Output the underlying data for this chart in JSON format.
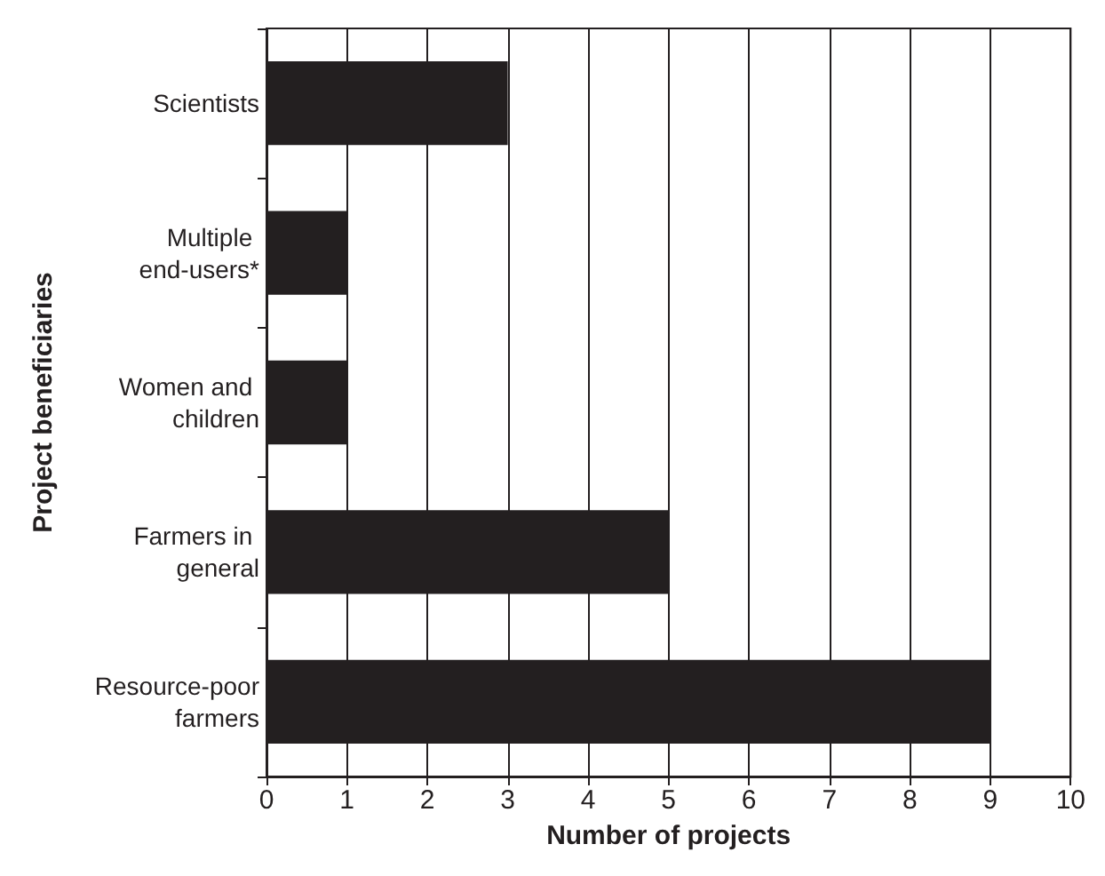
{
  "chart_data": {
    "type": "bar",
    "orientation": "horizontal",
    "xlabel": "Number of projects",
    "ylabel": "Project beneficiaries",
    "categories": [
      "Scientists",
      "Multiple end-users*",
      "Women and children",
      "Farmers in general",
      "Resource-poor farmers"
    ],
    "values": [
      3,
      1,
      1,
      5,
      9
    ],
    "color": "#231f20",
    "xlim": [
      0,
      10
    ],
    "xticks": [
      0,
      1,
      2,
      3,
      4,
      5,
      6,
      7,
      8,
      9,
      10
    ],
    "grid": "x"
  }
}
